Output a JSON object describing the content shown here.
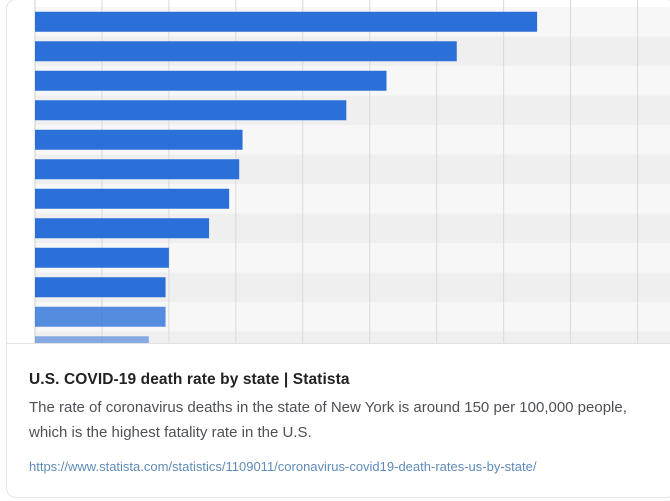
{
  "card": {
    "title": "U.S. COVID-19 death rate by state | Statista",
    "description": "The rate of coronavirus deaths in the state of New York is around 150 per 100,000 people, which is the highest fatality rate in the U.S.",
    "url": "https://www.statista.com/statistics/1109011/coronavirus-covid19-death-rates-us-by-state/"
  },
  "colors": {
    "bar": "#2b70d9",
    "band_light": "#f7f7f7",
    "band_dark": "#efefef",
    "grid": "#dadada"
  },
  "chart_data": {
    "type": "bar",
    "orientation": "horizontal",
    "values": [
      150,
      126,
      105,
      93,
      62,
      61,
      58,
      52,
      40,
      39,
      39,
      34
    ],
    "xlim": [
      0,
      190
    ],
    "grid": true
  }
}
